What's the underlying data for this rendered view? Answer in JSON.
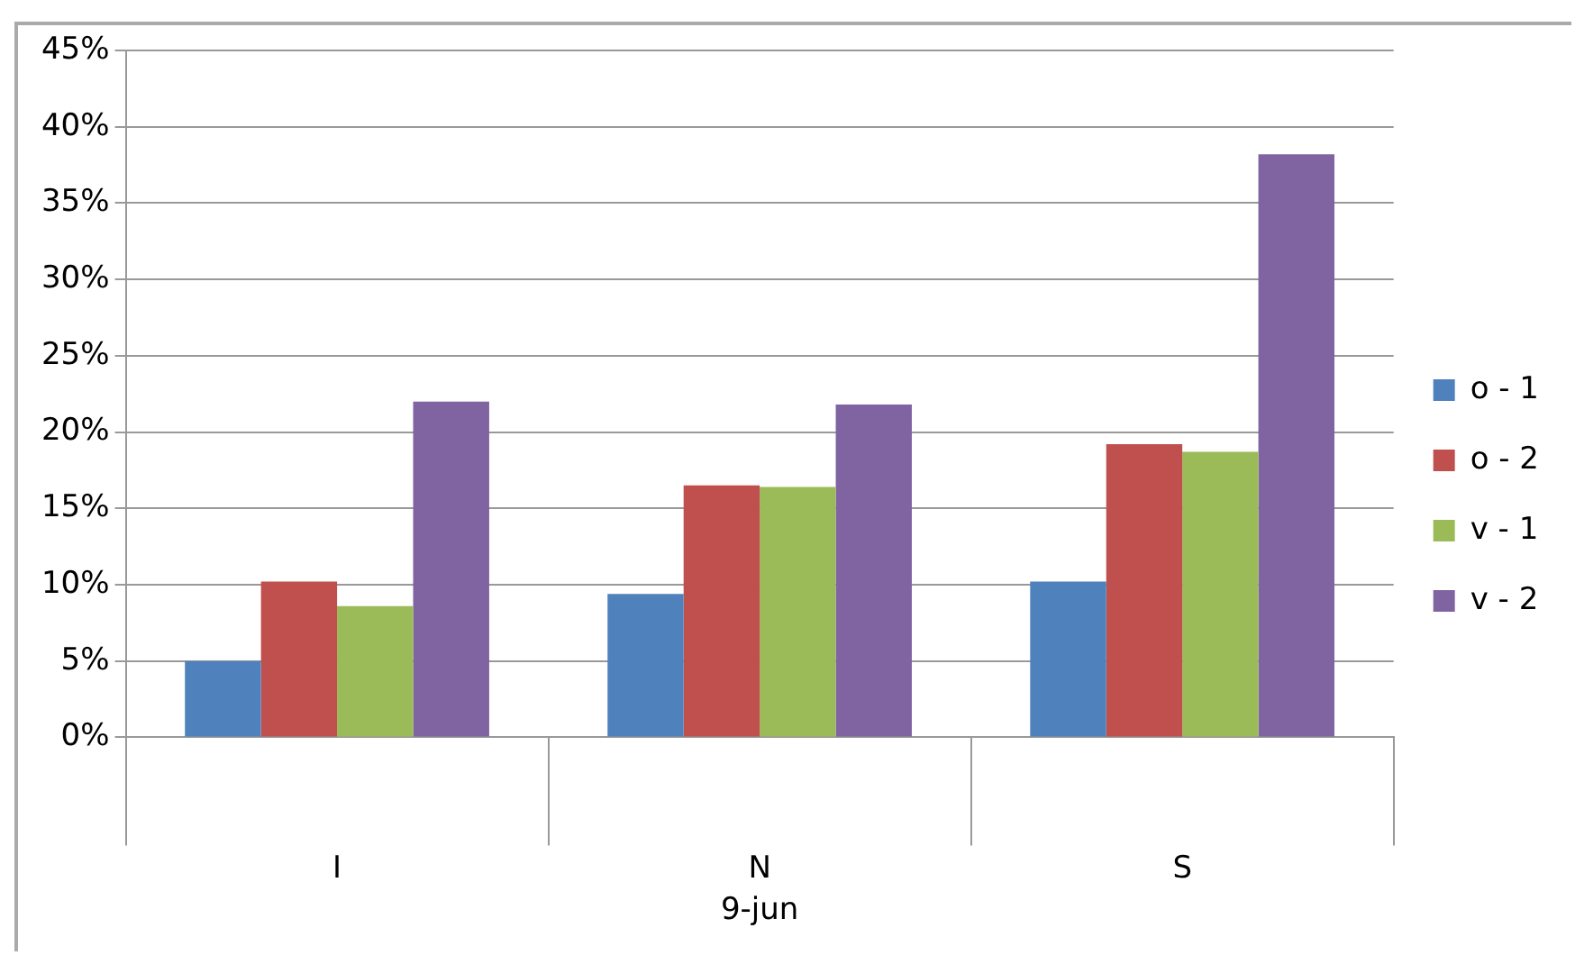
{
  "chart_data": {
    "type": "bar",
    "xlabel": "9-jun",
    "categories": [
      "I",
      "N",
      "S"
    ],
    "series": [
      {
        "name": "o - 1",
        "color": "#4f81bd",
        "values": [
          5.0,
          9.4,
          10.2
        ]
      },
      {
        "name": "o - 2",
        "color": "#c0504d",
        "values": [
          10.2,
          16.5,
          19.2
        ]
      },
      {
        "name": "v - 1",
        "color": "#9bbb59",
        "values": [
          8.6,
          16.4,
          18.7
        ]
      },
      {
        "name": "v - 2",
        "color": "#8064a2",
        "values": [
          22.0,
          21.8,
          38.2
        ]
      }
    ],
    "ylim": [
      0,
      45
    ],
    "yticks": [
      {
        "value": 0,
        "label": "0%"
      },
      {
        "value": 5,
        "label": "5%"
      },
      {
        "value": 10,
        "label": "10%"
      },
      {
        "value": 15,
        "label": "15%"
      },
      {
        "value": 20,
        "label": "20%"
      },
      {
        "value": 25,
        "label": "25%"
      },
      {
        "value": 30,
        "label": "30%"
      },
      {
        "value": 35,
        "label": "35%"
      },
      {
        "value": 40,
        "label": "40%"
      },
      {
        "value": 45,
        "label": "45%"
      }
    ],
    "grid": "y",
    "legend": "right"
  }
}
